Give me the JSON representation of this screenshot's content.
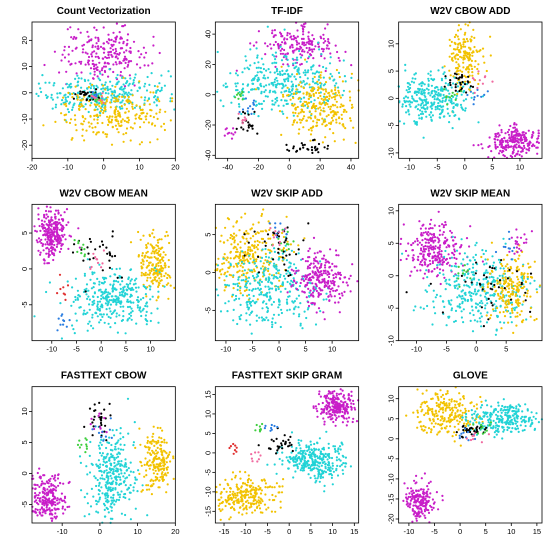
{
  "colors": {
    "cyan": "#22d3d6",
    "gold": "#f2c200",
    "magenta": "#c81ec8",
    "black": "#000000",
    "green": "#3fcf3f",
    "blue": "#2a7de1",
    "pink": "#f06aa0",
    "purple": "#8a2be2",
    "red": "#e03030"
  },
  "chart_data": [
    {
      "type": "scatter",
      "title": "Count Vectorization",
      "xlim": [
        -20,
        20
      ],
      "ylim": [
        -25,
        27
      ],
      "xticks": [
        -20,
        -10,
        0,
        10,
        20
      ],
      "yticks": [
        -20,
        -10,
        0,
        10,
        20
      ],
      "clusters": [
        {
          "color": "magenta",
          "cx": 0,
          "cy": 15,
          "sx": 6,
          "sy": 5,
          "n": 230
        },
        {
          "color": "cyan",
          "cx": 0,
          "cy": 0,
          "sx": 9,
          "sy": 3.5,
          "n": 300
        },
        {
          "color": "gold",
          "cx": 2,
          "cy": -8,
          "sx": 8,
          "sy": 5,
          "n": 260
        },
        {
          "color": "black",
          "cx": -5,
          "cy": -1,
          "sx": 1.5,
          "sy": 1.2,
          "n": 25
        },
        {
          "color": "green",
          "cx": -2,
          "cy": -2,
          "sx": 1,
          "sy": 1,
          "n": 10
        },
        {
          "color": "blue",
          "cx": -3,
          "cy": -1,
          "sx": 1,
          "sy": 1,
          "n": 10
        },
        {
          "color": "pink",
          "cx": -1,
          "cy": -2,
          "sx": 1,
          "sy": 1,
          "n": 10
        }
      ]
    },
    {
      "type": "scatter",
      "title": "TF-IDF",
      "xlim": [
        -48,
        45
      ],
      "ylim": [
        -42,
        48
      ],
      "xticks": [
        -40,
        -20,
        0,
        20,
        40
      ],
      "yticks": [
        -40,
        -20,
        0,
        20,
        40
      ],
      "clusters": [
        {
          "color": "magenta",
          "cx": 5,
          "cy": 32,
          "sx": 12,
          "sy": 6,
          "n": 180
        },
        {
          "color": "cyan",
          "cx": -5,
          "cy": 8,
          "sx": 20,
          "sy": 10,
          "n": 340
        },
        {
          "color": "gold",
          "cx": 20,
          "cy": -8,
          "sx": 12,
          "sy": 10,
          "n": 260
        },
        {
          "color": "black",
          "cx": 10,
          "cy": -35,
          "sx": 8,
          "sy": 2,
          "n": 30
        },
        {
          "color": "black",
          "cx": -28,
          "cy": -20,
          "sx": 4,
          "sy": 4,
          "n": 20
        },
        {
          "color": "magenta",
          "cx": -38,
          "cy": -25,
          "sx": 2,
          "sy": 2,
          "n": 10
        },
        {
          "color": "green",
          "cx": -32,
          "cy": 0,
          "sx": 2,
          "sy": 2,
          "n": 10
        },
        {
          "color": "blue",
          "cx": -26,
          "cy": -8,
          "sx": 3,
          "sy": 3,
          "n": 12
        },
        {
          "color": "pink",
          "cx": -30,
          "cy": -15,
          "sx": 2,
          "sy": 2,
          "n": 8
        }
      ]
    },
    {
      "type": "scatter",
      "title": "W2V CBOW ADD",
      "xlim": [
        -12,
        14
      ],
      "ylim": [
        -11,
        14
      ],
      "xticks": [
        -10,
        -5,
        0,
        5,
        10
      ],
      "yticks": [
        -10,
        -5,
        0,
        5,
        10
      ],
      "clusters": [
        {
          "color": "gold",
          "cx": 0,
          "cy": 8,
          "sx": 1.5,
          "sy": 3,
          "n": 170
        },
        {
          "color": "cyan",
          "cx": -6,
          "cy": 0,
          "sx": 3,
          "sy": 2.2,
          "n": 300
        },
        {
          "color": "magenta",
          "cx": 9,
          "cy": -8,
          "sx": 2.5,
          "sy": 1.5,
          "n": 240
        },
        {
          "color": "black",
          "cx": -1,
          "cy": 3,
          "sx": 1.5,
          "sy": 1,
          "n": 30
        },
        {
          "color": "green",
          "cx": -3,
          "cy": 0,
          "sx": 1,
          "sy": 1,
          "n": 10
        },
        {
          "color": "blue",
          "cx": 2,
          "cy": 1,
          "sx": 1,
          "sy": 1,
          "n": 10
        },
        {
          "color": "pink",
          "cx": 3,
          "cy": 3,
          "sx": 1,
          "sy": 1,
          "n": 10
        }
      ]
    },
    {
      "type": "scatter",
      "title": "W2V CBOW MEAN",
      "xlim": [
        -14,
        15
      ],
      "ylim": [
        -10,
        9
      ],
      "xticks": [
        -10,
        -5,
        0,
        5,
        10
      ],
      "yticks": [
        -5,
        0,
        5
      ],
      "clusters": [
        {
          "color": "magenta",
          "cx": -10,
          "cy": 5,
          "sx": 1.6,
          "sy": 1.8,
          "n": 250
        },
        {
          "color": "gold",
          "cx": 11,
          "cy": 0.5,
          "sx": 1.6,
          "sy": 2,
          "n": 190
        },
        {
          "color": "cyan",
          "cx": 2,
          "cy": -4,
          "sx": 4.5,
          "sy": 2,
          "n": 330
        },
        {
          "color": "black",
          "cx": -1,
          "cy": 2,
          "sx": 3,
          "sy": 2,
          "n": 30
        },
        {
          "color": "green",
          "cx": -4,
          "cy": 3,
          "sx": 1,
          "sy": 1,
          "n": 10
        },
        {
          "color": "blue",
          "cx": -8,
          "cy": -7,
          "sx": 1,
          "sy": 1,
          "n": 10
        },
        {
          "color": "pink",
          "cx": -1,
          "cy": 1,
          "sx": 1,
          "sy": 1,
          "n": 10
        },
        {
          "color": "red",
          "cx": -8,
          "cy": -3,
          "sx": 1,
          "sy": 1,
          "n": 8
        }
      ]
    },
    {
      "type": "scatter",
      "title": "W2V SKIP ADD",
      "xlim": [
        -12,
        15
      ],
      "ylim": [
        -9,
        9
      ],
      "xticks": [
        -10,
        -5,
        0,
        5,
        10
      ],
      "yticks": [
        -5,
        0,
        5
      ],
      "clusters": [
        {
          "color": "gold",
          "cx": -6,
          "cy": 2,
          "sx": 3.5,
          "sy": 2.5,
          "n": 280
        },
        {
          "color": "cyan",
          "cx": -2,
          "cy": -2,
          "sx": 4,
          "sy": 2.5,
          "n": 320
        },
        {
          "color": "magenta",
          "cx": 8,
          "cy": -1,
          "sx": 2.5,
          "sy": 1.8,
          "n": 240
        },
        {
          "color": "black",
          "cx": -1,
          "cy": 3,
          "sx": 3,
          "sy": 2,
          "n": 35
        },
        {
          "color": "green",
          "cx": 1,
          "cy": 4,
          "sx": 1,
          "sy": 1,
          "n": 10
        },
        {
          "color": "blue",
          "cx": 0,
          "cy": 6,
          "sx": 1,
          "sy": 1,
          "n": 10
        },
        {
          "color": "pink",
          "cx": 0,
          "cy": 5,
          "sx": 1,
          "sy": 1,
          "n": 10
        }
      ]
    },
    {
      "type": "scatter",
      "title": "W2V SKIP MEAN",
      "xlim": [
        -13,
        11
      ],
      "ylim": [
        -10,
        11
      ],
      "xticks": [
        -10,
        -5,
        0,
        5
      ],
      "yticks": [
        -10,
        -5,
        0,
        5,
        10
      ],
      "clusters": [
        {
          "color": "magenta",
          "cx": -7,
          "cy": 4,
          "sx": 2.5,
          "sy": 2,
          "n": 250
        },
        {
          "color": "cyan",
          "cx": 0,
          "cy": -2,
          "sx": 4,
          "sy": 3,
          "n": 330
        },
        {
          "color": "gold",
          "cx": 6,
          "cy": -2,
          "sx": 2,
          "sy": 2.5,
          "n": 200
        },
        {
          "color": "black",
          "cx": 1,
          "cy": -1,
          "sx": 4,
          "sy": 2.5,
          "n": 40
        },
        {
          "color": "magenta",
          "cx": 7,
          "cy": 5,
          "sx": 1,
          "sy": 0.8,
          "n": 20
        },
        {
          "color": "green",
          "cx": -2,
          "cy": 1,
          "sx": 1,
          "sy": 1,
          "n": 10
        },
        {
          "color": "blue",
          "cx": 5,
          "cy": 4,
          "sx": 1,
          "sy": 1,
          "n": 10
        }
      ]
    },
    {
      "type": "scatter",
      "title": "FASTTEXT CBOW",
      "xlim": [
        -18,
        20
      ],
      "ylim": [
        -8,
        14
      ],
      "xticks": [
        -10,
        0,
        10,
        20
      ],
      "yticks": [
        -5,
        0,
        5,
        10
      ],
      "clusters": [
        {
          "color": "magenta",
          "cx": -14,
          "cy": -4,
          "sx": 2.5,
          "sy": 2,
          "n": 240
        },
        {
          "color": "cyan",
          "cx": 3,
          "cy": -1,
          "sx": 3,
          "sy": 3.5,
          "n": 320
        },
        {
          "color": "gold",
          "cx": 15,
          "cy": 2,
          "sx": 2,
          "sy": 2.5,
          "n": 190
        },
        {
          "color": "black",
          "cx": 0,
          "cy": 9,
          "sx": 1.5,
          "sy": 1.5,
          "n": 30
        },
        {
          "color": "magenta",
          "cx": 0,
          "cy": 8,
          "sx": 1,
          "sy": 1,
          "n": 10
        },
        {
          "color": "green",
          "cx": -4,
          "cy": 4,
          "sx": 1,
          "sy": 1,
          "n": 10
        },
        {
          "color": "blue",
          "cx": 1,
          "cy": 7,
          "sx": 1,
          "sy": 1,
          "n": 10
        }
      ]
    },
    {
      "type": "scatter",
      "title": "FASTTEXT SKIP GRAM",
      "xlim": [
        -17,
        16
      ],
      "ylim": [
        -18,
        17
      ],
      "xticks": [
        -15,
        -10,
        -5,
        0,
        5,
        10,
        15
      ],
      "yticks": [
        -15,
        -10,
        -5,
        0,
        5,
        10,
        15
      ],
      "clusters": [
        {
          "color": "magenta",
          "cx": 11,
          "cy": 12,
          "sx": 2,
          "sy": 2,
          "n": 230
        },
        {
          "color": "cyan",
          "cx": 6,
          "cy": -2,
          "sx": 3.5,
          "sy": 2.5,
          "n": 320
        },
        {
          "color": "gold",
          "cx": -10,
          "cy": -11,
          "sx": 4,
          "sy": 2.5,
          "n": 250
        },
        {
          "color": "black",
          "cx": -2,
          "cy": 2,
          "sx": 2,
          "sy": 1.5,
          "n": 30
        },
        {
          "color": "red",
          "cx": -13,
          "cy": 1,
          "sx": 0.8,
          "sy": 0.8,
          "n": 8
        },
        {
          "color": "green",
          "cx": -7,
          "cy": 6,
          "sx": 0.8,
          "sy": 0.8,
          "n": 8
        },
        {
          "color": "blue",
          "cx": -4,
          "cy": 6,
          "sx": 0.8,
          "sy": 0.8,
          "n": 8
        },
        {
          "color": "pink",
          "cx": -8,
          "cy": -1,
          "sx": 1,
          "sy": 1,
          "n": 8
        }
      ]
    },
    {
      "type": "scatter",
      "title": "GLOVE",
      "xlim": [
        -12,
        16
      ],
      "ylim": [
        -21,
        13
      ],
      "xticks": [
        -10,
        -5,
        0,
        5,
        10,
        15
      ],
      "yticks": [
        -20,
        -15,
        -10,
        -5,
        0,
        5,
        10
      ],
      "clusters": [
        {
          "color": "gold",
          "cx": -3,
          "cy": 6,
          "sx": 3,
          "sy": 3,
          "n": 230
        },
        {
          "color": "cyan",
          "cx": 9,
          "cy": 5,
          "sx": 3.5,
          "sy": 1.8,
          "n": 260
        },
        {
          "color": "magenta",
          "cx": -8,
          "cy": -16,
          "sx": 1.5,
          "sy": 2.5,
          "n": 180
        },
        {
          "color": "black",
          "cx": 2,
          "cy": 2,
          "sx": 1.5,
          "sy": 1,
          "n": 30
        },
        {
          "color": "green",
          "cx": 4,
          "cy": 3,
          "sx": 1,
          "sy": 1,
          "n": 10
        },
        {
          "color": "blue",
          "cx": 1,
          "cy": 1,
          "sx": 1,
          "sy": 1,
          "n": 10
        },
        {
          "color": "pink",
          "cx": 3,
          "cy": 1,
          "sx": 1,
          "sy": 1,
          "n": 8
        }
      ]
    }
  ]
}
